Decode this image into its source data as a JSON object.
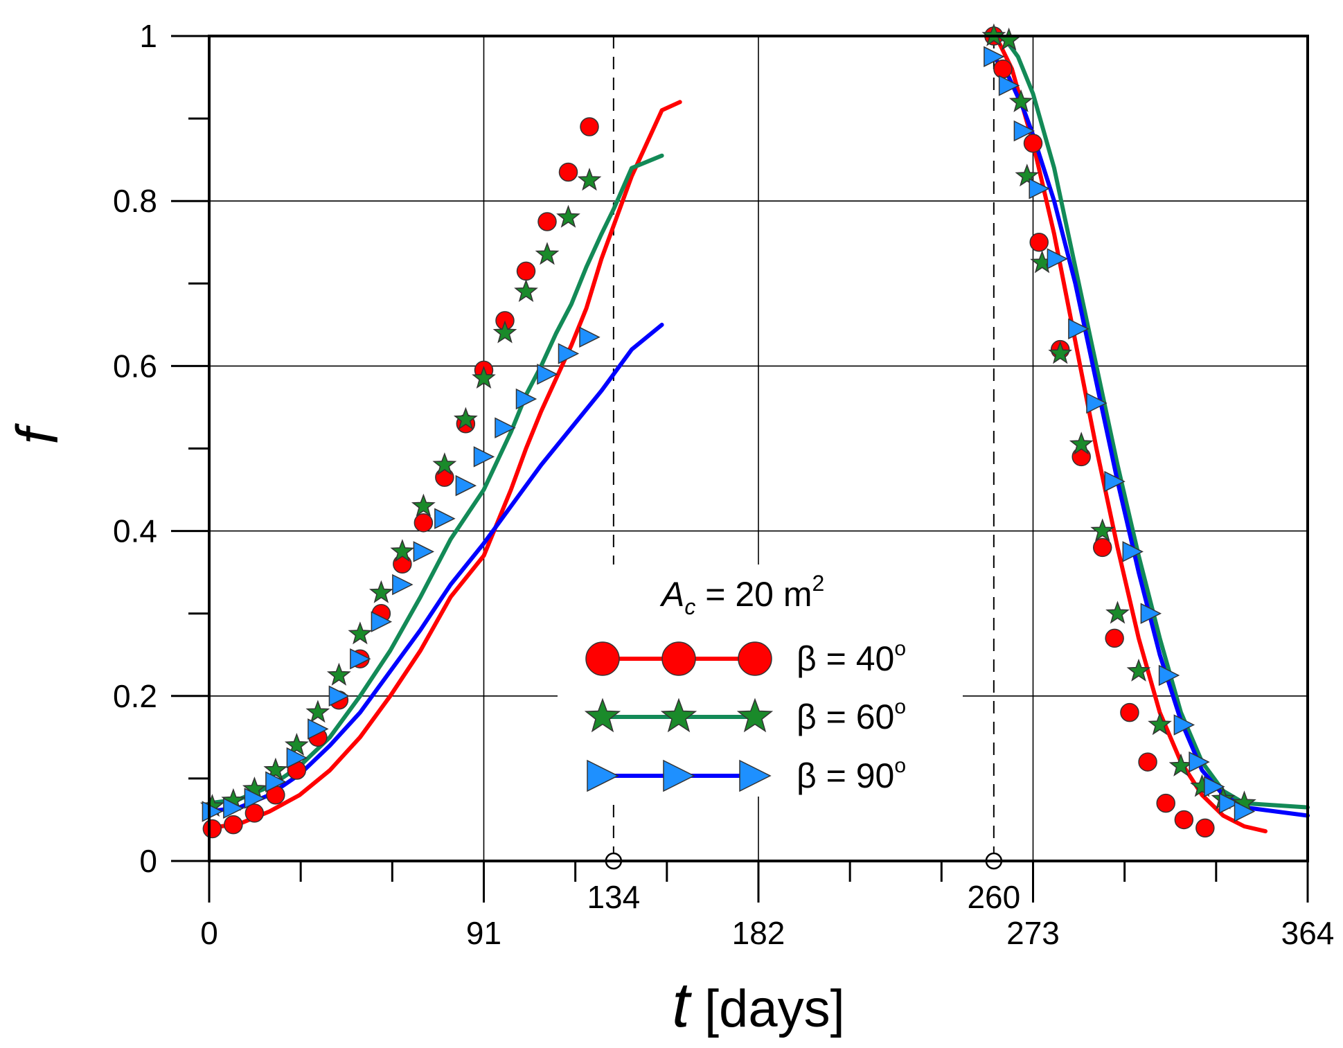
{
  "chart_data": {
    "type": "line",
    "title": "",
    "xlabel": {
      "symbol": "t",
      "unit": "[days]"
    },
    "ylabel": "f",
    "xlim": [
      0,
      364
    ],
    "ylim": [
      0,
      1
    ],
    "x_tick_labels": [
      "0",
      "91",
      "182",
      "273",
      "364"
    ],
    "x_ticks": [
      0,
      91,
      182,
      273,
      364
    ],
    "y_tick_labels": [
      "0",
      "0.2",
      "0.4",
      "0.6",
      "0.8",
      "1"
    ],
    "y_ticks": [
      0,
      0.2,
      0.4,
      0.6,
      0.8,
      1
    ],
    "x_minor_step": 30.333,
    "y_minor_step": 0.1,
    "grid": true,
    "reference_lines": [
      {
        "x": 134,
        "label": "134"
      },
      {
        "x": 260,
        "label": "260"
      }
    ],
    "legend": {
      "title_symbol": "A",
      "title_subscript": "c",
      "title_rest": " = 20 m",
      "title_superscript": "2",
      "position": "bottom-center"
    },
    "series": [
      {
        "name": "β = 40º",
        "label_main": "β = 40",
        "label_sup": "o",
        "color": "#ff0000",
        "marker": "circle",
        "marker_fill": "#ff0000",
        "segments": [
          {
            "line": [
              [
                0,
                0.04
              ],
              [
                10,
                0.045
              ],
              [
                20,
                0.06
              ],
              [
                30,
                0.08
              ],
              [
                40,
                0.11
              ],
              [
                50,
                0.15
              ],
              [
                60,
                0.2
              ],
              [
                70,
                0.255
              ],
              [
                80,
                0.32
              ],
              [
                91,
                0.37
              ],
              [
                100,
                0.45
              ],
              [
                105,
                0.5
              ],
              [
                110,
                0.545
              ],
              [
                115,
                0.585
              ],
              [
                120,
                0.625
              ],
              [
                125,
                0.67
              ],
              [
                130,
                0.73
              ],
              [
                134,
                0.77
              ],
              [
                140,
                0.83
              ],
              [
                150,
                0.91
              ],
              [
                156,
                0.92
              ]
            ],
            "markers": [
              [
                1,
                0.039
              ],
              [
                8,
                0.044
              ],
              [
                15,
                0.058
              ],
              [
                22,
                0.08
              ],
              [
                29,
                0.11
              ],
              [
                36,
                0.15
              ],
              [
                43,
                0.195
              ],
              [
                50,
                0.245
              ],
              [
                57,
                0.3
              ],
              [
                64,
                0.36
              ],
              [
                71,
                0.41
              ],
              [
                78,
                0.465
              ],
              [
                85,
                0.53
              ],
              [
                91,
                0.595
              ],
              [
                98,
                0.655
              ],
              [
                105,
                0.715
              ],
              [
                112,
                0.775
              ],
              [
                119,
                0.835
              ],
              [
                126,
                0.89
              ]
            ]
          },
          {
            "line": [
              [
                260,
                1
              ],
              [
                262,
                0.99
              ],
              [
                266,
                0.96
              ],
              [
                273,
                0.87
              ],
              [
                280,
                0.76
              ],
              [
                287,
                0.63
              ],
              [
                294,
                0.5
              ],
              [
                301,
                0.38
              ],
              [
                308,
                0.27
              ],
              [
                315,
                0.18
              ],
              [
                322,
                0.12
              ],
              [
                329,
                0.08
              ],
              [
                336,
                0.055
              ],
              [
                343,
                0.042
              ],
              [
                350,
                0.036
              ]
            ],
            "markers": [
              [
                260,
                1
              ],
              [
                263,
                0.96
              ],
              [
                273,
                0.87
              ],
              [
                275,
                0.75
              ],
              [
                282,
                0.62
              ],
              [
                289,
                0.49
              ],
              [
                296,
                0.38
              ],
              [
                300,
                0.27
              ],
              [
                305,
                0.18
              ],
              [
                311,
                0.12
              ],
              [
                317,
                0.07
              ],
              [
                323,
                0.05
              ],
              [
                330,
                0.04
              ]
            ]
          }
        ]
      },
      {
        "name": "β = 60º",
        "label_main": "β = 60",
        "label_sup": "o",
        "color": "#138a57",
        "marker": "star",
        "marker_fill": "#1a8a2a",
        "segments": [
          {
            "line": [
              [
                0,
                0.07
              ],
              [
                10,
                0.075
              ],
              [
                20,
                0.09
              ],
              [
                30,
                0.115
              ],
              [
                40,
                0.15
              ],
              [
                50,
                0.2
              ],
              [
                60,
                0.255
              ],
              [
                70,
                0.32
              ],
              [
                80,
                0.39
              ],
              [
                91,
                0.45
              ],
              [
                100,
                0.52
              ],
              [
                105,
                0.565
              ],
              [
                110,
                0.6
              ],
              [
                115,
                0.64
              ],
              [
                120,
                0.675
              ],
              [
                125,
                0.72
              ],
              [
                130,
                0.76
              ],
              [
                134,
                0.79
              ],
              [
                140,
                0.84
              ],
              [
                150,
                0.855
              ]
            ],
            "markers": [
              [
                1,
                0.066
              ],
              [
                8,
                0.073
              ],
              [
                15,
                0.087
              ],
              [
                22,
                0.11
              ],
              [
                29,
                0.14
              ],
              [
                36,
                0.18
              ],
              [
                43,
                0.225
              ],
              [
                50,
                0.275
              ],
              [
                57,
                0.325
              ],
              [
                64,
                0.375
              ],
              [
                71,
                0.43
              ],
              [
                78,
                0.48
              ],
              [
                85,
                0.535
              ],
              [
                91,
                0.585
              ],
              [
                98,
                0.64
              ],
              [
                105,
                0.69
              ],
              [
                112,
                0.735
              ],
              [
                119,
                0.78
              ],
              [
                126,
                0.825
              ]
            ]
          },
          {
            "line": [
              [
                260,
                1
              ],
              [
                264,
                0.995
              ],
              [
                268,
                0.975
              ],
              [
                273,
                0.93
              ],
              [
                280,
                0.84
              ],
              [
                287,
                0.72
              ],
              [
                294,
                0.6
              ],
              [
                301,
                0.48
              ],
              [
                308,
                0.37
              ],
              [
                315,
                0.27
              ],
              [
                322,
                0.18
              ],
              [
                329,
                0.12
              ],
              [
                336,
                0.085
              ],
              [
                343,
                0.07
              ],
              [
                364,
                0.065
              ]
            ],
            "markers": [
              [
                260,
                1
              ],
              [
                265,
                0.995
              ],
              [
                269,
                0.92
              ],
              [
                271,
                0.83
              ],
              [
                276,
                0.725
              ],
              [
                282,
                0.615
              ],
              [
                289,
                0.505
              ],
              [
                296,
                0.4
              ],
              [
                301,
                0.3
              ],
              [
                308,
                0.23
              ],
              [
                315,
                0.165
              ],
              [
                322,
                0.115
              ],
              [
                329,
                0.09
              ],
              [
                336,
                0.075
              ],
              [
                343,
                0.07
              ]
            ]
          }
        ]
      },
      {
        "name": "β = 90º",
        "label_main": "β = 90",
        "label_sup": "o",
        "color": "#0000ff",
        "marker": "triangle-right",
        "marker_fill": "#1e90ff",
        "segments": [
          {
            "line": [
              [
                0,
                0.06
              ],
              [
                10,
                0.065
              ],
              [
                20,
                0.08
              ],
              [
                30,
                0.105
              ],
              [
                40,
                0.14
              ],
              [
                50,
                0.18
              ],
              [
                60,
                0.23
              ],
              [
                70,
                0.28
              ],
              [
                80,
                0.335
              ],
              [
                91,
                0.385
              ],
              [
                100,
                0.43
              ],
              [
                110,
                0.48
              ],
              [
                120,
                0.525
              ],
              [
                130,
                0.57
              ],
              [
                134,
                0.59
              ],
              [
                140,
                0.62
              ],
              [
                150,
                0.65
              ]
            ],
            "markers": [
              [
                1,
                0.06
              ],
              [
                8,
                0.064
              ],
              [
                15,
                0.076
              ],
              [
                22,
                0.096
              ],
              [
                29,
                0.125
              ],
              [
                36,
                0.16
              ],
              [
                43,
                0.2
              ],
              [
                50,
                0.245
              ],
              [
                57,
                0.29
              ],
              [
                64,
                0.335
              ],
              [
                71,
                0.375
              ],
              [
                78,
                0.415
              ],
              [
                85,
                0.455
              ],
              [
                91,
                0.49
              ],
              [
                98,
                0.525
              ],
              [
                105,
                0.56
              ],
              [
                112,
                0.59
              ],
              [
                119,
                0.615
              ],
              [
                126,
                0.635
              ]
            ]
          },
          {
            "line": [
              [
                260,
                0.975
              ],
              [
                265,
                0.95
              ],
              [
                270,
                0.91
              ],
              [
                273,
                0.88
              ],
              [
                280,
                0.8
              ],
              [
                287,
                0.7
              ],
              [
                294,
                0.58
              ],
              [
                301,
                0.46
              ],
              [
                308,
                0.35
              ],
              [
                315,
                0.25
              ],
              [
                322,
                0.17
              ],
              [
                329,
                0.11
              ],
              [
                336,
                0.08
              ],
              [
                343,
                0.065
              ],
              [
                364,
                0.055
              ]
            ],
            "markers": [
              [
                260,
                0.975
              ],
              [
                265,
                0.94
              ],
              [
                270,
                0.885
              ],
              [
                275,
                0.815
              ],
              [
                281,
                0.73
              ],
              [
                288,
                0.645
              ],
              [
                294,
                0.555
              ],
              [
                300,
                0.46
              ],
              [
                306,
                0.375
              ],
              [
                312,
                0.3
              ],
              [
                318,
                0.225
              ],
              [
                323,
                0.165
              ],
              [
                328,
                0.12
              ],
              [
                333,
                0.09
              ],
              [
                338,
                0.07
              ],
              [
                343,
                0.06
              ]
            ]
          }
        ]
      }
    ]
  }
}
